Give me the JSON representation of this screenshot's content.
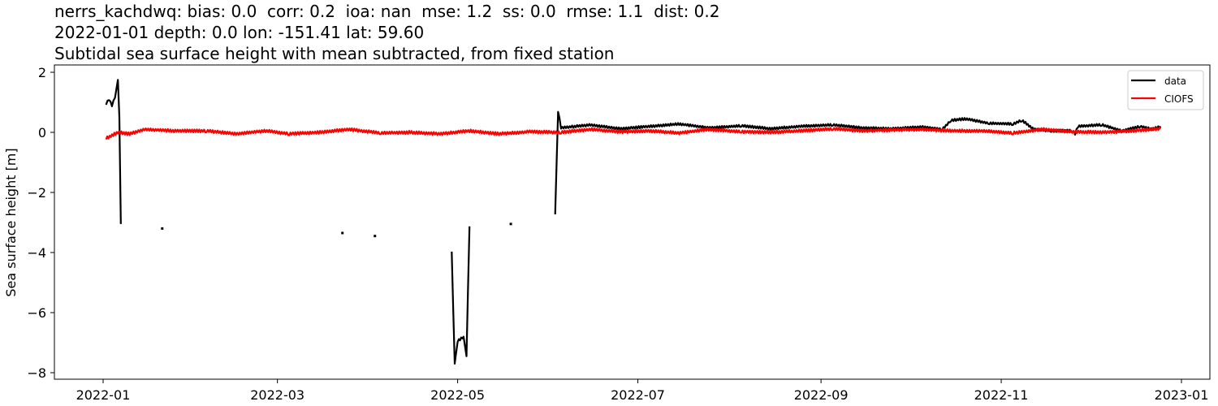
{
  "chart_data": {
    "type": "line",
    "title_lines": [
      "nerrs_kachdwq: bias: 0.0  corr: 0.2  ioa: nan  mse: 1.2  ss: 0.0  rmse: 1.1  dist: 0.2",
      "2022-01-01 depth: 0.0 lon: -151.41 lat: 59.60",
      "Subtidal sea surface height with mean subtracted, from fixed station"
    ],
    "xlabel": "",
    "ylabel": "Sea surface height [m]",
    "ylim": [
      -8.2,
      2.2
    ],
    "xlim": [
      "2021-12-15",
      "2023-01-15"
    ],
    "yticks": [
      2,
      0,
      -2,
      -4,
      -6,
      -8
    ],
    "ytick_labels": [
      "2",
      "0",
      "−2",
      "−4",
      "−6",
      "−8"
    ],
    "xticks": [
      "2022-01",
      "2022-03",
      "2022-05",
      "2022-07",
      "2022-09",
      "2022-11",
      "2023-01"
    ],
    "grid": false,
    "legend_position": "upper right",
    "legend": [
      "data",
      "CIOFS"
    ],
    "series": [
      {
        "name": "data",
        "color": "#000000",
        "segments": [
          [
            [
              "2022-01-02",
              0.95
            ],
            [
              "2022-01-03",
              1.1
            ],
            [
              "2022-01-04",
              0.9
            ],
            [
              "2022-01-05",
              1.15
            ],
            [
              "2022-01-06",
              1.75
            ],
            [
              "2022-01-06.5",
              0.5
            ],
            [
              "2022-01-07",
              -3.05
            ]
          ],
          [
            [
              "2022-01-21",
              -3.2
            ]
          ],
          [
            [
              "2022-03-23",
              -3.35
            ]
          ],
          [
            [
              "2022-04-03",
              -3.45
            ]
          ],
          [
            [
              "2022-04-29",
              -3.97
            ],
            [
              "2022-04-30",
              -7.7
            ],
            [
              "2022-05-01",
              -6.95
            ],
            [
              "2022-05-03",
              -6.8
            ],
            [
              "2022-05-04",
              -7.45
            ],
            [
              "2022-05-05",
              -3.13
            ]
          ],
          [
            [
              "2022-05-19",
              -3.05
            ]
          ],
          [
            [
              "2022-06-03",
              -2.73
            ],
            [
              "2022-06-04",
              0.72
            ],
            [
              "2022-06-05",
              0.15
            ],
            [
              "2022-06-15",
              0.25
            ],
            [
              "2022-06-25",
              0.12
            ],
            [
              "2022-07-05",
              0.2
            ],
            [
              "2022-07-15",
              0.28
            ],
            [
              "2022-07-25",
              0.15
            ],
            [
              "2022-08-05",
              0.22
            ],
            [
              "2022-08-15",
              0.12
            ],
            [
              "2022-08-25",
              0.2
            ],
            [
              "2022-09-05",
              0.25
            ],
            [
              "2022-09-15",
              0.15
            ],
            [
              "2022-09-25",
              0.12
            ],
            [
              "2022-10-05",
              0.18
            ],
            [
              "2022-10-12",
              0.1
            ],
            [
              "2022-10-15",
              0.4
            ],
            [
              "2022-10-20",
              0.45
            ],
            [
              "2022-10-28",
              0.3
            ],
            [
              "2022-11-05",
              0.28
            ],
            [
              "2022-11-08",
              0.4
            ],
            [
              "2022-11-12",
              0.1
            ],
            [
              "2022-11-18",
              0.05
            ],
            [
              "2022-11-25",
              0.05
            ],
            [
              "2022-11-26",
              -0.05
            ],
            [
              "2022-11-27",
              0.2
            ],
            [
              "2022-12-05",
              0.25
            ],
            [
              "2022-12-12",
              0.05
            ],
            [
              "2022-12-18",
              0.2
            ],
            [
              "2022-12-22",
              0.1
            ],
            [
              "2022-12-25",
              0.2
            ]
          ]
        ]
      },
      {
        "name": "CIOFS",
        "color": "#ff0000",
        "points": [
          [
            "2022-01-02",
            -0.2
          ],
          [
            "2022-01-06",
            0.0
          ],
          [
            "2022-01-10",
            -0.05
          ],
          [
            "2022-01-15",
            0.1
          ],
          [
            "2022-01-25",
            0.05
          ],
          [
            "2022-02-05",
            0.05
          ],
          [
            "2022-02-15",
            -0.05
          ],
          [
            "2022-02-25",
            0.05
          ],
          [
            "2022-03-05",
            -0.05
          ],
          [
            "2022-03-15",
            0.0
          ],
          [
            "2022-03-25",
            0.1
          ],
          [
            "2022-04-05",
            -0.02
          ],
          [
            "2022-04-15",
            0.0
          ],
          [
            "2022-04-25",
            -0.05
          ],
          [
            "2022-05-05",
            0.05
          ],
          [
            "2022-05-15",
            -0.05
          ],
          [
            "2022-05-25",
            0.02
          ],
          [
            "2022-06-05",
            0.0
          ],
          [
            "2022-06-15",
            0.1
          ],
          [
            "2022-06-25",
            0.02
          ],
          [
            "2022-07-05",
            0.05
          ],
          [
            "2022-07-15",
            -0.02
          ],
          [
            "2022-07-25",
            0.1
          ],
          [
            "2022-08-05",
            0.02
          ],
          [
            "2022-08-15",
            0.0
          ],
          [
            "2022-08-25",
            0.05
          ],
          [
            "2022-09-05",
            0.12
          ],
          [
            "2022-09-15",
            0.05
          ],
          [
            "2022-09-25",
            0.08
          ],
          [
            "2022-10-05",
            0.1
          ],
          [
            "2022-10-15",
            0.05
          ],
          [
            "2022-10-25",
            0.05
          ],
          [
            "2022-11-05",
            -0.02
          ],
          [
            "2022-11-15",
            0.1
          ],
          [
            "2022-11-25",
            0.02
          ],
          [
            "2022-12-05",
            0.0
          ],
          [
            "2022-12-15",
            0.05
          ],
          [
            "2022-12-25",
            0.12
          ]
        ]
      }
    ]
  }
}
